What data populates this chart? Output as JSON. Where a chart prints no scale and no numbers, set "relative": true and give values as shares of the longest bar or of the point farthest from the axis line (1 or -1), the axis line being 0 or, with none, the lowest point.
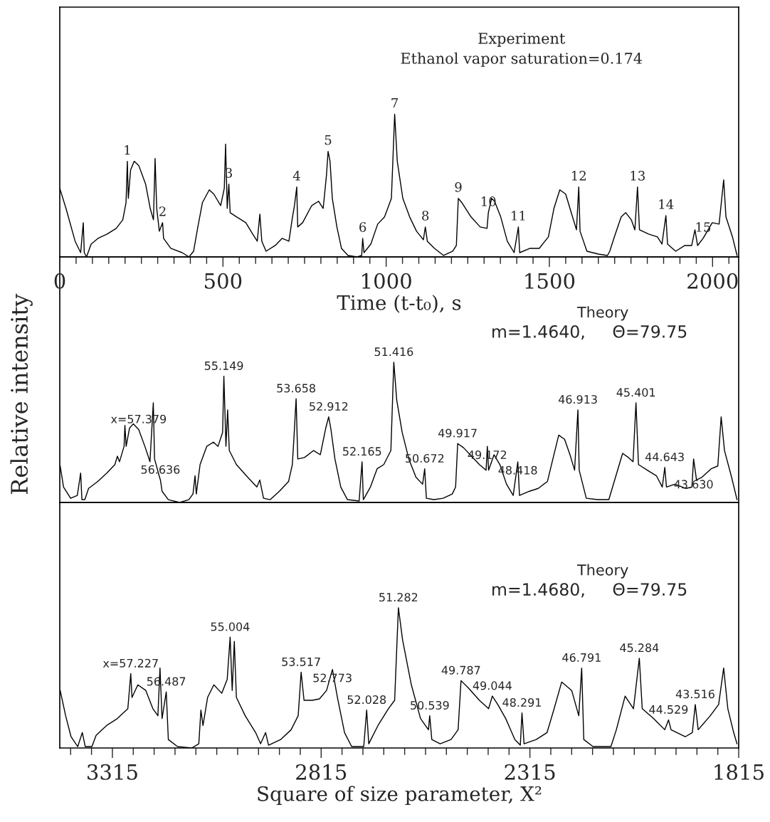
{
  "chart_data": [
    {
      "type": "line",
      "relative": true,
      "xlabel": "Time (t-t₀), s",
      "xlim": [
        0,
        2080
      ],
      "xticks": [
        0,
        {
          "value": 50,
          "label": null
        },
        {
          "value": 100,
          "label": null
        },
        {
          "value": 150,
          "label": null
        },
        {
          "value": 200,
          "label": null
        },
        {
          "value": 250,
          "label": null
        },
        {
          "value": 300,
          "label": null
        },
        {
          "value": 350,
          "label": null
        },
        {
          "value": 400,
          "label": null
        },
        {
          "value": 450,
          "label": null
        },
        500,
        {
          "value": 550,
          "label": null
        },
        {
          "value": 600,
          "label": null
        },
        {
          "value": 650,
          "label": null
        },
        {
          "value": 700,
          "label": null
        },
        {
          "value": 750,
          "label": null
        },
        {
          "value": 800,
          "label": null
        },
        {
          "value": 850,
          "label": null
        },
        {
          "value": 900,
          "label": null
        },
        {
          "value": 950,
          "label": null
        },
        1000,
        {
          "value": 1050,
          "label": null
        },
        {
          "value": 1100,
          "label": null
        },
        {
          "value": 1150,
          "label": null
        },
        {
          "value": 1200,
          "label": null
        },
        {
          "value": 1250,
          "label": null
        },
        {
          "value": 1300,
          "label": null
        },
        {
          "value": 1350,
          "label": null
        },
        {
          "value": 1400,
          "label": null
        },
        {
          "value": 1450,
          "label": null
        },
        1500,
        {
          "value": 1550,
          "label": null
        },
        {
          "value": 1600,
          "label": null
        },
        {
          "value": 1650,
          "label": null
        },
        {
          "value": 1700,
          "label": null
        },
        {
          "value": 1750,
          "label": null
        },
        {
          "value": 1800,
          "label": null
        },
        {
          "value": 1850,
          "label": null
        },
        {
          "value": 1900,
          "label": null
        },
        {
          "value": 1950,
          "label": null
        },
        2000,
        {
          "value": 2050,
          "label": null
        }
      ],
      "series": [
        {
          "color": "#000000",
          "x": [
            0,
            19,
            47,
            64,
            72,
            75,
            82,
            96,
            117,
            145,
            173,
            193,
            203,
            207,
            210,
            217,
            228,
            242,
            263,
            277,
            287,
            292,
            297,
            305,
            315,
            318,
            340,
            375,
            396,
            410,
            423,
            437,
            458,
            472,
            493,
            504,
            508,
            513,
            518,
            522,
            542,
            570,
            591,
            605,
            613,
            619,
            632,
            660,
            681,
            702,
            713,
            719,
            726,
            729,
            744,
            772,
            793,
            807,
            817,
            822,
            828,
            835,
            849,
            863,
            883,
            911,
            925,
            928,
            932,
            953,
            974,
            995,
            1016,
            1026,
            1034,
            1051,
            1072,
            1093,
            1114,
            1120,
            1126,
            1148,
            1176,
            1204,
            1215,
            1221,
            1232,
            1260,
            1288,
            1309,
            1313,
            1323,
            1332,
            1351,
            1371,
            1392,
            1405,
            1409,
            1441,
            1469,
            1497,
            1514,
            1532,
            1550,
            1567,
            1583,
            1590,
            1594,
            1615,
            1650,
            1678,
            1685,
            1699,
            1720,
            1734,
            1751,
            1762,
            1770,
            1776,
            1804,
            1831,
            1845,
            1857,
            1862,
            1887,
            1915,
            1936,
            1946,
            1954,
            1971,
            1999,
            2020,
            2034,
            2041,
            2061,
            2075
          ],
          "values": [
            0.48,
            0.34,
            0.11,
            0.03,
            0.24,
            0.03,
            0.0,
            0.09,
            0.13,
            0.16,
            0.2,
            0.26,
            0.38,
            0.67,
            0.41,
            0.61,
            0.67,
            0.64,
            0.51,
            0.34,
            0.26,
            0.69,
            0.34,
            0.18,
            0.24,
            0.13,
            0.06,
            0.03,
            0.0,
            0.04,
            0.21,
            0.38,
            0.47,
            0.44,
            0.36,
            0.48,
            0.79,
            0.34,
            0.51,
            0.31,
            0.28,
            0.24,
            0.16,
            0.11,
            0.3,
            0.11,
            0.04,
            0.08,
            0.13,
            0.11,
            0.28,
            0.36,
            0.49,
            0.21,
            0.24,
            0.36,
            0.39,
            0.34,
            0.57,
            0.74,
            0.67,
            0.41,
            0.21,
            0.06,
            0.01,
            0.0,
            0.01,
            0.13,
            0.03,
            0.09,
            0.23,
            0.28,
            0.41,
            1.0,
            0.67,
            0.41,
            0.28,
            0.18,
            0.12,
            0.21,
            0.11,
            0.06,
            0.01,
            0.04,
            0.08,
            0.41,
            0.38,
            0.28,
            0.21,
            0.2,
            0.31,
            0.41,
            0.39,
            0.28,
            0.11,
            0.03,
            0.21,
            0.03,
            0.06,
            0.06,
            0.14,
            0.34,
            0.47,
            0.44,
            0.31,
            0.19,
            0.49,
            0.18,
            0.04,
            0.02,
            0.01,
            0.04,
            0.14,
            0.28,
            0.31,
            0.26,
            0.19,
            0.49,
            0.19,
            0.16,
            0.14,
            0.09,
            0.29,
            0.09,
            0.04,
            0.08,
            0.08,
            0.19,
            0.08,
            0.13,
            0.24,
            0.23,
            0.54,
            0.28,
            0.14,
            0.01
          ]
        }
      ],
      "annotations": [
        "Experiment",
        "Ethanol vapor saturation=0.174",
        {
          "text": "1",
          "x": 207,
          "y": 0.67
        },
        {
          "text": "2",
          "x": 315,
          "y": 0.24
        },
        {
          "text": "3",
          "x": 518,
          "y": 0.51
        },
        {
          "text": "4",
          "x": 726,
          "y": 0.49
        },
        {
          "text": "5",
          "x": 822,
          "y": 0.74
        },
        {
          "text": "6",
          "x": 928,
          "y": 0.13
        },
        {
          "text": "7",
          "x": 1026,
          "y": 1.0
        },
        {
          "text": "8",
          "x": 1120,
          "y": 0.21
        },
        {
          "text": "9",
          "x": 1221,
          "y": 0.41
        },
        {
          "text": "10",
          "x": 1313,
          "y": 0.31
        },
        {
          "text": "11",
          "x": 1405,
          "y": 0.21
        },
        {
          "text": "12",
          "x": 1590,
          "y": 0.49
        },
        {
          "text": "13",
          "x": 1770,
          "y": 0.49
        },
        {
          "text": "14",
          "x": 1857,
          "y": 0.29
        },
        {
          "text": "15",
          "x": 1971,
          "y": 0.13
        }
      ]
    },
    {
      "type": "line",
      "relative": true,
      "ylabel": "Relative intensity",
      "xlim": [
        3441,
        1815
      ],
      "series": [
        {
          "color": "#000000",
          "x": [
            3440,
            3432,
            3415,
            3399,
            3391,
            3388,
            3381,
            3372,
            3350,
            3328,
            3309,
            3303,
            3298,
            3287,
            3285,
            3282,
            3274,
            3265,
            3252,
            3236,
            3225,
            3217,
            3214,
            3203,
            3200,
            3196,
            3181,
            3154,
            3132,
            3122,
            3117,
            3114,
            3105,
            3089,
            3073,
            3062,
            3051,
            3048,
            3043,
            3039,
            3035,
            3018,
            2991,
            2969,
            2962,
            2953,
            2937,
            2915,
            2893,
            2884,
            2880,
            2875,
            2871,
            2855,
            2833,
            2817,
            2804,
            2797,
            2792,
            2782,
            2768,
            2752,
            2724,
            2717,
            2714,
            2697,
            2681,
            2665,
            2648,
            2641,
            2634,
            2621,
            2605,
            2588,
            2572,
            2567,
            2563,
            2545,
            2523,
            2501,
            2493,
            2488,
            2474,
            2458,
            2436,
            2420,
            2417,
            2414,
            2401,
            2387,
            2371,
            2355,
            2344,
            2340,
            2316,
            2295,
            2273,
            2260,
            2246,
            2232,
            2219,
            2208,
            2200,
            2197,
            2180,
            2153,
            2126,
            2110,
            2093,
            2079,
            2068,
            2061,
            2055,
            2034,
            2012,
            1998,
            1992,
            1988,
            1968,
            1941,
            1927,
            1923,
            1916,
            1903,
            1881,
            1865,
            1857,
            1849,
            1832,
            1819
          ],
          "values": [
            0.26,
            0.11,
            0.03,
            0.05,
            0.21,
            0.02,
            0.02,
            0.1,
            0.15,
            0.21,
            0.27,
            0.33,
            0.29,
            0.4,
            0.55,
            0.4,
            0.53,
            0.56,
            0.52,
            0.39,
            0.29,
            0.71,
            0.31,
            0.19,
            0.16,
            0.08,
            0.02,
            0.0,
            0.02,
            0.06,
            0.19,
            0.06,
            0.27,
            0.4,
            0.43,
            0.4,
            0.5,
            0.9,
            0.4,
            0.66,
            0.37,
            0.27,
            0.18,
            0.11,
            0.16,
            0.03,
            0.02,
            0.08,
            0.15,
            0.27,
            0.47,
            0.74,
            0.31,
            0.32,
            0.37,
            0.34,
            0.53,
            0.61,
            0.53,
            0.31,
            0.11,
            0.02,
            0.01,
            0.29,
            0.02,
            0.11,
            0.24,
            0.27,
            0.37,
            1.0,
            0.73,
            0.5,
            0.31,
            0.18,
            0.13,
            0.24,
            0.03,
            0.02,
            0.03,
            0.06,
            0.11,
            0.42,
            0.39,
            0.34,
            0.27,
            0.23,
            0.4,
            0.23,
            0.34,
            0.27,
            0.13,
            0.05,
            0.29,
            0.05,
            0.08,
            0.1,
            0.15,
            0.31,
            0.48,
            0.45,
            0.34,
            0.23,
            0.66,
            0.23,
            0.03,
            0.02,
            0.02,
            0.18,
            0.35,
            0.32,
            0.29,
            0.71,
            0.27,
            0.23,
            0.19,
            0.11,
            0.25,
            0.11,
            0.13,
            0.1,
            0.11,
            0.31,
            0.16,
            0.18,
            0.24,
            0.26,
            0.61,
            0.37,
            0.18,
            0.02
          ]
        }
      ],
      "annotations": [
        "Theory",
        "m=1.4640,     Θ=79.75",
        {
          "text": "x=57.379",
          "x": 3252,
          "y": 0.52
        },
        {
          "text": "56.636",
          "x": 3200,
          "y": 0.16
        },
        {
          "text": "55.149",
          "x": 3048,
          "y": 0.9
        },
        {
          "text": "53.658",
          "x": 2875,
          "y": 0.74
        },
        {
          "text": "52.912",
          "x": 2797,
          "y": 0.61
        },
        {
          "text": "52.165",
          "x": 2717,
          "y": 0.29
        },
        {
          "text": "51.416",
          "x": 2641,
          "y": 1.0
        },
        {
          "text": "50.672",
          "x": 2567,
          "y": 0.24
        },
        {
          "text": "49.917",
          "x": 2488,
          "y": 0.42
        },
        {
          "text": "49.172",
          "x": 2417,
          "y": 0.4
        },
        {
          "text": "48.418",
          "x": 2344,
          "y": 0.29
        },
        {
          "text": "46.913",
          "x": 2200,
          "y": 0.66
        },
        {
          "text": "45.401",
          "x": 2061,
          "y": 0.71
        },
        {
          "text": "44.643",
          "x": 1992,
          "y": 0.25
        },
        {
          "text": "43.630",
          "x": 1923,
          "y": 0.31
        }
      ]
    },
    {
      "type": "line",
      "relative": true,
      "xlabel": "Square of size parameter, X²",
      "xlim": [
        3441,
        1815
      ],
      "xticks": [
        {
          "value": 3415,
          "label": null
        },
        {
          "value": 3365,
          "label": null
        },
        3315,
        {
          "value": 3265,
          "label": null
        },
        {
          "value": 3215,
          "label": null
        },
        {
          "value": 3165,
          "label": null
        },
        {
          "value": 3115,
          "label": null
        },
        {
          "value": 3065,
          "label": null
        },
        {
          "value": 3015,
          "label": null
        },
        {
          "value": 2965,
          "label": null
        },
        {
          "value": 2915,
          "label": null
        },
        {
          "value": 2865,
          "label": null
        },
        2815,
        {
          "value": 2765,
          "label": null
        },
        {
          "value": 2715,
          "label": null
        },
        {
          "value": 2665,
          "label": null
        },
        {
          "value": 2615,
          "label": null
        },
        {
          "value": 2565,
          "label": null
        },
        {
          "value": 2515,
          "label": null
        },
        {
          "value": 2465,
          "label": null
        },
        {
          "value": 2415,
          "label": null
        },
        {
          "value": 2365,
          "label": null
        },
        2315,
        {
          "value": 2265,
          "label": null
        },
        {
          "value": 2215,
          "label": null
        },
        {
          "value": 2165,
          "label": null
        },
        {
          "value": 2115,
          "label": null
        },
        {
          "value": 2065,
          "label": null
        },
        {
          "value": 2015,
          "label": null
        },
        {
          "value": 1965,
          "label": null
        },
        {
          "value": 1915,
          "label": null
        },
        {
          "value": 1865,
          "label": null
        },
        1815
      ],
      "series": [
        {
          "color": "#000000",
          "x": [
            3440,
            3427,
            3414,
            3398,
            3387,
            3380,
            3364,
            3354,
            3329,
            3303,
            3278,
            3271,
            3268,
            3254,
            3235,
            3218,
            3206,
            3201,
            3196,
            3186,
            3181,
            3159,
            3125,
            3108,
            3103,
            3098,
            3087,
            3072,
            3053,
            3040,
            3033,
            3028,
            3023,
            3018,
            2997,
            2972,
            2960,
            2948,
            2941,
            2912,
            2887,
            2870,
            2863,
            2856,
            2836,
            2819,
            2802,
            2788,
            2776,
            2759,
            2742,
            2713,
            2706,
            2701,
            2679,
            2654,
            2639,
            2630,
            2620,
            2599,
            2577,
            2558,
            2555,
            2550,
            2530,
            2504,
            2487,
            2480,
            2463,
            2436,
            2414,
            2405,
            2392,
            2373,
            2351,
            2338,
            2334,
            2329,
            2300,
            2274,
            2257,
            2239,
            2215,
            2198,
            2191,
            2186,
            2164,
            2121,
            2108,
            2087,
            2067,
            2053,
            2046,
            2019,
            1992,
            1983,
            1977,
            1943,
            1926,
            1919,
            1912,
            1883,
            1863,
            1851,
            1841,
            1827,
            1819
          ],
          "values": [
            0.41,
            0.23,
            0.08,
            0.01,
            0.11,
            0.01,
            0.01,
            0.09,
            0.16,
            0.21,
            0.28,
            0.53,
            0.36,
            0.45,
            0.41,
            0.28,
            0.23,
            0.57,
            0.21,
            0.4,
            0.06,
            0.01,
            0.0,
            0.03,
            0.27,
            0.16,
            0.36,
            0.45,
            0.39,
            0.49,
            0.79,
            0.41,
            0.76,
            0.36,
            0.23,
            0.11,
            0.03,
            0.11,
            0.02,
            0.06,
            0.13,
            0.23,
            0.54,
            0.34,
            0.34,
            0.35,
            0.41,
            0.56,
            0.36,
            0.11,
            0.01,
            0.01,
            0.27,
            0.03,
            0.16,
            0.28,
            0.34,
            1.0,
            0.77,
            0.45,
            0.21,
            0.13,
            0.23,
            0.06,
            0.03,
            0.06,
            0.13,
            0.48,
            0.43,
            0.34,
            0.28,
            0.37,
            0.31,
            0.21,
            0.06,
            0.02,
            0.25,
            0.03,
            0.06,
            0.11,
            0.28,
            0.47,
            0.41,
            0.23,
            0.57,
            0.06,
            0.01,
            0.01,
            0.13,
            0.37,
            0.28,
            0.64,
            0.28,
            0.21,
            0.13,
            0.2,
            0.13,
            0.08,
            0.11,
            0.31,
            0.13,
            0.23,
            0.31,
            0.57,
            0.28,
            0.11,
            0.03
          ]
        }
      ],
      "annotations": [
        "Theory",
        "m=1.4680,     Θ=79.75",
        {
          "text": "x=57.227",
          "x": 3271,
          "y": 0.53
        },
        {
          "text": "56.487",
          "x": 3186,
          "y": 0.4
        },
        {
          "text": "55.004",
          "x": 3033,
          "y": 0.79
        },
        {
          "text": "53.517",
          "x": 2863,
          "y": 0.54
        },
        {
          "text": "52.773",
          "x": 2788,
          "y": 0.56
        },
        {
          "text": "52.028",
          "x": 2706,
          "y": 0.27
        },
        {
          "text": "51.282",
          "x": 2630,
          "y": 1.0
        },
        {
          "text": "50.539",
          "x": 2555,
          "y": 0.23
        },
        {
          "text": "49.787",
          "x": 2480,
          "y": 0.48
        },
        {
          "text": "49.044",
          "x": 2405,
          "y": 0.37
        },
        {
          "text": "48.291",
          "x": 2334,
          "y": 0.25
        },
        {
          "text": "46.791",
          "x": 2191,
          "y": 0.57
        },
        {
          "text": "45.284",
          "x": 2053,
          "y": 0.64
        },
        {
          "text": "44.529",
          "x": 1983,
          "y": 0.2
        },
        {
          "text": "43.516",
          "x": 1919,
          "y": 0.31
        }
      ]
    }
  ]
}
